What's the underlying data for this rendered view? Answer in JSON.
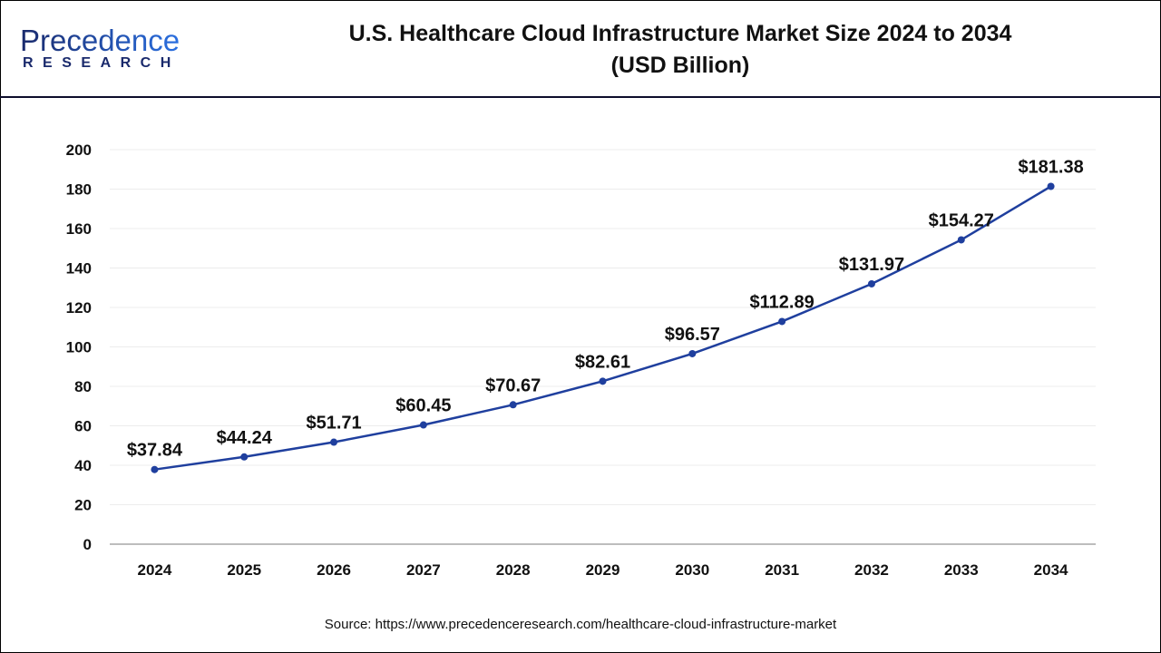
{
  "logo": {
    "text_main": "Precedence",
    "text_sub": "RESEARCH"
  },
  "title_line1": "U.S. Healthcare Cloud Infrastructure Market Size 2024 to 2034",
  "title_line2": "(USD Billion)",
  "source": "Source: https://www.precedenceresearch.com/healthcare-cloud-infrastructure-market",
  "colors": {
    "line": "#1f3f9e",
    "grid": "#ececec",
    "axis": "#bdbdbd",
    "header_rule": "#0d0d2b"
  },
  "chart_data": {
    "type": "line",
    "title": "U.S. Healthcare Cloud Infrastructure Market Size 2024 to 2034 (USD Billion)",
    "categories": [
      "2024",
      "2025",
      "2026",
      "2027",
      "2028",
      "2029",
      "2030",
      "2031",
      "2032",
      "2033",
      "2034"
    ],
    "values": [
      37.84,
      44.24,
      51.71,
      60.45,
      70.67,
      82.61,
      96.57,
      112.89,
      131.97,
      154.27,
      181.38
    ],
    "data_labels": [
      "$37.84",
      "$44.24",
      "$51.71",
      "$60.45",
      "$70.67",
      "$82.61",
      "$96.57",
      "$112.89",
      "$131.97",
      "$154.27",
      "$181.38"
    ],
    "ylim": [
      0,
      200
    ],
    "yticks": [
      0,
      20,
      40,
      60,
      80,
      100,
      120,
      140,
      160,
      180,
      200
    ],
    "grid": true,
    "legend": "none",
    "xlabel": "",
    "ylabel": ""
  }
}
